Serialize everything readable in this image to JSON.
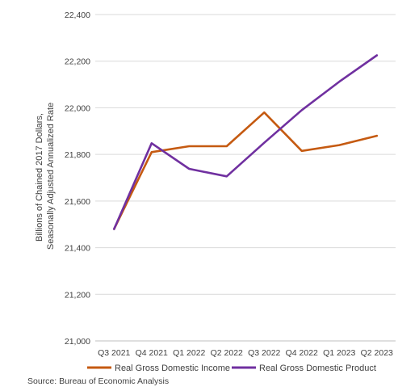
{
  "chart_data": {
    "type": "line",
    "categories": [
      "Q3 2021",
      "Q4 2021",
      "Q1 2022",
      "Q2 2022",
      "Q3 2022",
      "Q4 2022",
      "Q1 2023",
      "Q2 2023"
    ],
    "series": [
      {
        "name": "Real Gross Domestic Income",
        "color": "#c55a11",
        "values": [
          21480,
          21810,
          21835,
          21835,
          21980,
          21815,
          21840,
          21880
        ]
      },
      {
        "name": "Real Gross Domestic Product",
        "color": "#7030a0",
        "values": [
          21480,
          21848,
          21738,
          21706,
          21850,
          21990,
          22112,
          22225
        ]
      }
    ],
    "ylabel_line1": "Billions of Chained 2017 Dollars,",
    "ylabel_line2": "Seasonally Adjusted Annualized Rate",
    "ylim": [
      21000,
      22400
    ],
    "yticks": [
      "21,000",
      "21,200",
      "21,400",
      "21,600",
      "21,800",
      "22,000",
      "22,200",
      "22,400"
    ],
    "grid": true,
    "legend_position": "bottom",
    "source": "Source: Bureau of Economic Analysis"
  }
}
